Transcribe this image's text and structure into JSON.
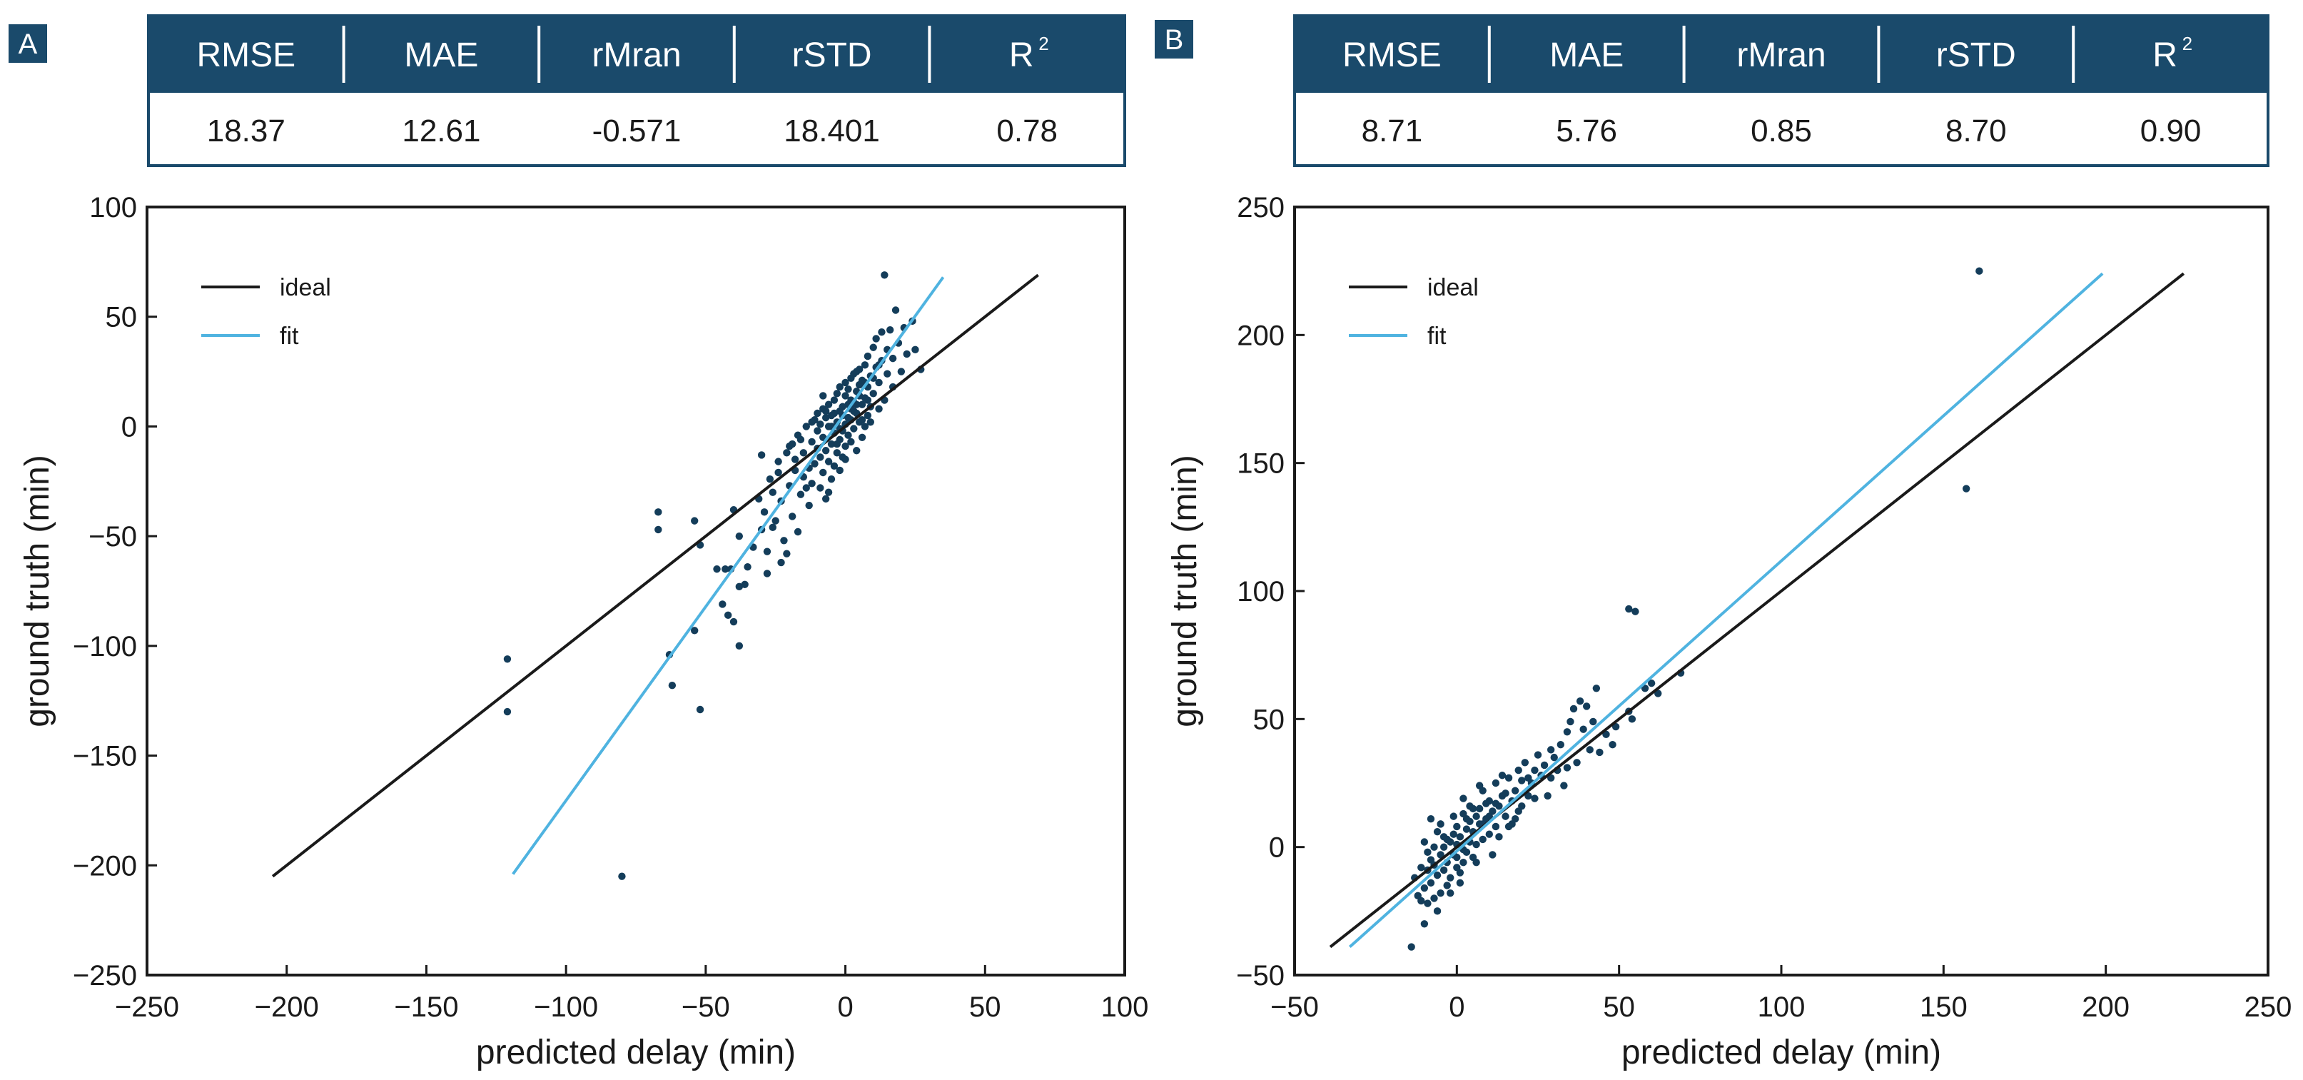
{
  "colors": {
    "header_bg": "#1a4a6b",
    "header_text": "#ffffff",
    "ideal_line": "#1a1a1a",
    "fit_line": "#4fb3e0",
    "points": "#143d5a",
    "axis": "#1a1a1a"
  },
  "chart_data": [
    {
      "type": "scatter",
      "panel_label": "A",
      "metrics": {
        "headers": [
          "RMSE",
          "MAE",
          "rMran",
          "rSTD",
          "R"
        ],
        "superscripts": [
          "",
          "",
          "",
          "",
          "2"
        ],
        "values": [
          "18.37",
          "12.61",
          "-0.571",
          "18.401",
          "0.78"
        ]
      },
      "xlabel": "predicted delay (min)",
      "ylabel": "ground truth (min)",
      "xlim": [
        -250,
        100
      ],
      "ylim": [
        -250,
        100
      ],
      "xticks": [
        -250,
        -200,
        -150,
        -100,
        -50,
        0,
        50,
        100
      ],
      "yticks": [
        -250,
        -200,
        -150,
        -100,
        -50,
        0,
        50,
        100
      ],
      "xtick_labels": [
        "−250",
        "−200",
        "−150",
        "−100",
        "−50",
        "0",
        "50",
        "100"
      ],
      "ytick_labels": [
        "−250",
        "−200",
        "−150",
        "−100",
        "−50",
        "0",
        "50",
        "100"
      ],
      "legend": [
        "ideal",
        "fit"
      ],
      "legend_position": "top-left",
      "ideal_line": [
        [
          -205,
          -205
        ],
        [
          69,
          69
        ]
      ],
      "fit_line": [
        [
          -119,
          -204
        ],
        [
          35,
          68
        ]
      ],
      "points": [
        [
          -121,
          -106
        ],
        [
          -121,
          -130
        ],
        [
          -80,
          -205
        ],
        [
          -67,
          -39
        ],
        [
          -67,
          -47
        ],
        [
          -63,
          -104
        ],
        [
          -62,
          -118
        ],
        [
          -54,
          -43
        ],
        [
          -54,
          -93
        ],
        [
          -52,
          -54
        ],
        [
          -52,
          -129
        ],
        [
          -46,
          -65
        ],
        [
          -44,
          -81
        ],
        [
          -43,
          -65
        ],
        [
          -42,
          -86
        ],
        [
          -41,
          -65
        ],
        [
          -40,
          -38
        ],
        [
          -40,
          -89
        ],
        [
          -38,
          -50
        ],
        [
          -38,
          -100
        ],
        [
          -38,
          -73
        ],
        [
          -36,
          -72
        ],
        [
          -35,
          -64
        ],
        [
          -33,
          -55
        ],
        [
          -30,
          -47
        ],
        [
          -30,
          -13
        ],
        [
          -29,
          -39
        ],
        [
          -28,
          -67
        ],
        [
          -27,
          -24
        ],
        [
          -26,
          -30
        ],
        [
          -25,
          -43
        ],
        [
          -24,
          -16
        ],
        [
          -23,
          -34
        ],
        [
          -22,
          -52
        ],
        [
          -21,
          -58
        ],
        [
          -20,
          -27
        ],
        [
          -20,
          -9
        ],
        [
          -19,
          -41
        ],
        [
          -18,
          -20
        ],
        [
          -17,
          -4
        ],
        [
          -16,
          -31
        ],
        [
          -15,
          -23
        ],
        [
          -15,
          -12
        ],
        [
          -14,
          0
        ],
        [
          -13,
          -19
        ],
        [
          -13,
          -36
        ],
        [
          -12,
          -7
        ],
        [
          -12,
          -26
        ],
        [
          -11,
          3
        ],
        [
          -11,
          -17
        ],
        [
          -10,
          -10
        ],
        [
          -10,
          6
        ],
        [
          -9,
          -14
        ],
        [
          -9,
          -28
        ],
        [
          -9,
          1
        ],
        [
          -8,
          -5
        ],
        [
          -8,
          8
        ],
        [
          -8,
          -21
        ],
        [
          -7,
          -11
        ],
        [
          -7,
          4
        ],
        [
          -7,
          -33
        ],
        [
          -6,
          0
        ],
        [
          -6,
          -16
        ],
        [
          -6,
          10
        ],
        [
          -5,
          -8
        ],
        [
          -5,
          5
        ],
        [
          -5,
          -24
        ],
        [
          -4,
          -3
        ],
        [
          -4,
          12
        ],
        [
          -4,
          -18
        ],
        [
          -3,
          2
        ],
        [
          -3,
          -12
        ],
        [
          -3,
          15
        ],
        [
          -2,
          -6
        ],
        [
          -2,
          7
        ],
        [
          -2,
          -20
        ],
        [
          -1,
          -2
        ],
        [
          -1,
          9
        ],
        [
          -1,
          -14
        ],
        [
          0,
          1
        ],
        [
          0,
          14
        ],
        [
          0,
          -9
        ],
        [
          0,
          20
        ],
        [
          1,
          4
        ],
        [
          1,
          -4
        ],
        [
          1,
          17
        ],
        [
          2,
          8
        ],
        [
          2,
          -7
        ],
        [
          2,
          22
        ],
        [
          3,
          11
        ],
        [
          3,
          -1
        ],
        [
          3,
          24
        ],
        [
          4,
          6
        ],
        [
          4,
          16
        ],
        [
          4,
          -11
        ],
        [
          5,
          19
        ],
        [
          5,
          2
        ],
        [
          5,
          26
        ],
        [
          6,
          10
        ],
        [
          6,
          21
        ],
        [
          6,
          -5
        ],
        [
          7,
          13
        ],
        [
          7,
          28
        ],
        [
          7,
          0
        ],
        [
          8,
          18
        ],
        [
          8,
          32
        ],
        [
          8,
          5
        ],
        [
          9,
          23
        ],
        [
          9,
          9
        ],
        [
          10,
          36
        ],
        [
          10,
          15
        ],
        [
          11,
          27
        ],
        [
          11,
          40
        ],
        [
          12,
          20
        ],
        [
          12,
          8
        ],
        [
          13,
          43
        ],
        [
          13,
          30
        ],
        [
          14,
          69
        ],
        [
          14,
          12
        ],
        [
          15,
          35
        ],
        [
          15,
          24
        ],
        [
          16,
          44
        ],
        [
          17,
          31
        ],
        [
          17,
          18
        ],
        [
          18,
          53
        ],
        [
          19,
          38
        ],
        [
          20,
          25
        ],
        [
          21,
          45
        ],
        [
          22,
          33
        ],
        [
          24,
          48
        ],
        [
          25,
          35
        ],
        [
          27,
          26
        ],
        [
          -18,
          -15
        ],
        [
          -16,
          -6
        ],
        [
          -14,
          -28
        ],
        [
          -12,
          2
        ],
        [
          -10,
          -2
        ],
        [
          -8,
          14
        ],
        [
          -6,
          -30
        ],
        [
          -4,
          6
        ],
        [
          -2,
          18
        ],
        [
          0,
          -15
        ],
        [
          2,
          12
        ],
        [
          4,
          25
        ],
        [
          6,
          3
        ],
        [
          8,
          12
        ],
        [
          10,
          22
        ],
        [
          12,
          28
        ],
        [
          -23,
          -62
        ],
        [
          -31,
          -33
        ],
        [
          -26,
          -46
        ],
        [
          -19,
          -8
        ],
        [
          -17,
          -48
        ],
        [
          -24,
          -21
        ],
        [
          -28,
          -57
        ],
        [
          -21,
          -12
        ],
        [
          1,
          10
        ],
        [
          3,
          7
        ],
        [
          5,
          14
        ],
        [
          -1,
          5
        ],
        [
          -3,
          -8
        ],
        [
          -5,
          0
        ],
        [
          7,
          20
        ],
        [
          9,
          2
        ],
        [
          -7,
          7
        ],
        [
          2,
          3
        ],
        [
          4,
          10
        ],
        [
          -2,
          -1
        ]
      ]
    },
    {
      "type": "scatter",
      "panel_label": "B",
      "metrics": {
        "headers": [
          "RMSE",
          "MAE",
          "rMran",
          "rSTD",
          "R"
        ],
        "superscripts": [
          "",
          "",
          "",
          "",
          "2"
        ],
        "values": [
          "8.71",
          "5.76",
          "0.85",
          "8.70",
          "0.90"
        ]
      },
      "xlabel": "predicted delay (min)",
      "ylabel": "ground truth (min)",
      "xlim": [
        -50,
        250
      ],
      "ylim": [
        -50,
        250
      ],
      "xticks": [
        -50,
        0,
        50,
        100,
        150,
        200,
        250
      ],
      "yticks": [
        -50,
        0,
        50,
        100,
        150,
        200,
        250
      ],
      "xtick_labels": [
        "−50",
        "0",
        "50",
        "100",
        "150",
        "200",
        "250"
      ],
      "ytick_labels": [
        "−50",
        "0",
        "50",
        "100",
        "150",
        "200",
        "250"
      ],
      "legend": [
        "ideal",
        "fit"
      ],
      "legend_position": "top-left",
      "ideal_line": [
        [
          -39,
          -39
        ],
        [
          224,
          224
        ]
      ],
      "fit_line": [
        [
          -33,
          -39
        ],
        [
          199,
          224
        ]
      ],
      "points": [
        [
          161,
          225
        ],
        [
          157,
          140
        ],
        [
          53,
          93
        ],
        [
          55,
          92
        ],
        [
          60,
          64
        ],
        [
          69,
          68
        ],
        [
          43,
          62
        ],
        [
          44,
          37
        ],
        [
          53,
          53
        ],
        [
          54,
          50
        ],
        [
          38,
          57
        ],
        [
          40,
          55
        ],
        [
          42,
          49
        ],
        [
          36,
          54
        ],
        [
          35,
          49
        ],
        [
          34,
          45
        ],
        [
          32,
          40
        ],
        [
          30,
          35
        ],
        [
          29,
          38
        ],
        [
          27,
          32
        ],
        [
          26,
          28
        ],
        [
          24,
          30
        ],
        [
          23,
          25
        ],
        [
          22,
          20
        ],
        [
          21,
          33
        ],
        [
          20,
          26
        ],
        [
          19,
          14
        ],
        [
          18,
          22
        ],
        [
          17,
          18
        ],
        [
          16,
          27
        ],
        [
          15,
          12
        ],
        [
          14,
          20
        ],
        [
          13,
          16
        ],
        [
          12,
          25
        ],
        [
          12,
          8
        ],
        [
          11,
          14
        ],
        [
          10,
          18
        ],
        [
          10,
          5
        ],
        [
          9,
          11
        ],
        [
          8,
          22
        ],
        [
          8,
          3
        ],
        [
          7,
          9
        ],
        [
          7,
          15
        ],
        [
          6,
          1
        ],
        [
          6,
          12
        ],
        [
          5,
          6
        ],
        [
          5,
          -4
        ],
        [
          4,
          10
        ],
        [
          4,
          2
        ],
        [
          3,
          -2
        ],
        [
          3,
          7
        ],
        [
          2,
          13
        ],
        [
          2,
          -6
        ],
        [
          1,
          4
        ],
        [
          1,
          -10
        ],
        [
          0,
          1
        ],
        [
          0,
          8
        ],
        [
          0,
          -8
        ],
        [
          -1,
          -3
        ],
        [
          -1,
          5
        ],
        [
          -2,
          -12
        ],
        [
          -2,
          2
        ],
        [
          -3,
          -6
        ],
        [
          -3,
          -15
        ],
        [
          -4,
          0
        ],
        [
          -4,
          -9
        ],
        [
          -5,
          -18
        ],
        [
          -5,
          -3
        ],
        [
          -6,
          -11
        ],
        [
          -6,
          6
        ],
        [
          -7,
          -7
        ],
        [
          -7,
          -20
        ],
        [
          -8,
          -14
        ],
        [
          -8,
          11
        ],
        [
          -9,
          -2
        ],
        [
          -9,
          -22
        ],
        [
          -10,
          -16
        ],
        [
          -10,
          -30
        ],
        [
          -11,
          -8
        ],
        [
          -11,
          -21
        ],
        [
          -12,
          -19
        ],
        [
          -13,
          -12
        ],
        [
          -14,
          -39
        ],
        [
          25,
          36
        ],
        [
          28,
          20
        ],
        [
          31,
          30
        ],
        [
          33,
          24
        ],
        [
          19,
          30
        ],
        [
          17,
          9
        ],
        [
          14,
          28
        ],
        [
          11,
          -3
        ],
        [
          9,
          17
        ],
        [
          7,
          24
        ],
        [
          4,
          16
        ],
        [
          2,
          19
        ],
        [
          -1,
          12
        ],
        [
          -2,
          -18
        ],
        [
          -4,
          4
        ],
        [
          -6,
          -25
        ],
        [
          -8,
          -5
        ],
        [
          -10,
          2
        ],
        [
          46,
          44
        ],
        [
          48,
          40
        ],
        [
          39,
          46
        ],
        [
          37,
          33
        ],
        [
          1,
          -14
        ],
        [
          3,
          11
        ],
        [
          5,
          15
        ],
        [
          -3,
          3
        ],
        [
          0,
          -4
        ],
        [
          6,
          -6
        ],
        [
          8,
          9
        ],
        [
          10,
          12
        ],
        [
          12,
          17
        ],
        [
          15,
          21
        ],
        [
          18,
          11
        ],
        [
          20,
          16
        ],
        [
          22,
          27
        ],
        [
          24,
          19
        ],
        [
          -5,
          9
        ],
        [
          -7,
          0
        ],
        [
          -9,
          -9
        ],
        [
          2,
          -1
        ],
        [
          13,
          4
        ],
        [
          16,
          8
        ],
        [
          29,
          27
        ],
        [
          34,
          31
        ],
        [
          41,
          38
        ],
        [
          58,
          62
        ],
        [
          62,
          60
        ],
        [
          49,
          47
        ]
      ]
    }
  ]
}
